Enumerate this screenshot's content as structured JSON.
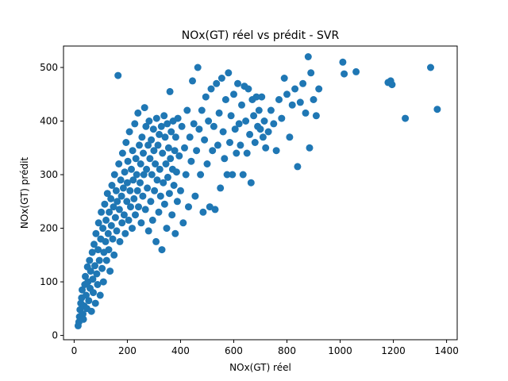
{
  "chart_data": {
    "type": "scatter",
    "title": "NOx(GT) réel vs prédit - SVR",
    "xlabel": "NOx(GT) réel",
    "ylabel": "NOx(GT) prédit",
    "xlim": [
      -40,
      1440
    ],
    "ylim": [
      -8,
      540
    ],
    "xticks": [
      0,
      200,
      400,
      600,
      800,
      1000,
      1200,
      1400
    ],
    "yticks": [
      0,
      100,
      200,
      300,
      400,
      500
    ],
    "grid": false,
    "legend": "none",
    "marker_color": "#1f77b4",
    "series": [
      {
        "points": [
          [
            15,
            18
          ],
          [
            18,
            25
          ],
          [
            20,
            35
          ],
          [
            22,
            48
          ],
          [
            25,
            60
          ],
          [
            28,
            70
          ],
          [
            30,
            85
          ],
          [
            33,
            40
          ],
          [
            35,
            30
          ],
          [
            38,
            55
          ],
          [
            40,
            95
          ],
          [
            42,
            110
          ],
          [
            45,
            75
          ],
          [
            48,
            50
          ],
          [
            50,
            128
          ],
          [
            52,
            100
          ],
          [
            55,
            65
          ],
          [
            58,
            140
          ],
          [
            60,
            88
          ],
          [
            62,
            120
          ],
          [
            65,
            45
          ],
          [
            68,
            155
          ],
          [
            70,
            105
          ],
          [
            72,
            80
          ],
          [
            75,
            170
          ],
          [
            78,
            130
          ],
          [
            80,
            60
          ],
          [
            82,
            190
          ],
          [
            85,
            115
          ],
          [
            88,
            95
          ],
          [
            90,
            160
          ],
          [
            92,
            210
          ],
          [
            95,
            140
          ],
          [
            98,
            75
          ],
          [
            100,
            180
          ],
          [
            102,
            230
          ],
          [
            105,
            125
          ],
          [
            108,
            200
          ],
          [
            110,
            100
          ],
          [
            112,
            155
          ],
          [
            115,
            245
          ],
          [
            118,
            175
          ],
          [
            120,
            215
          ],
          [
            122,
            140
          ],
          [
            125,
            265
          ],
          [
            128,
            190
          ],
          [
            130,
            160
          ],
          [
            132,
            230
          ],
          [
            135,
            120
          ],
          [
            138,
            255
          ],
          [
            140,
            205
          ],
          [
            142,
            280
          ],
          [
            145,
            180
          ],
          [
            148,
            240
          ],
          [
            150,
            150
          ],
          [
            152,
            300
          ],
          [
            155,
            220
          ],
          [
            158,
            270
          ],
          [
            160,
            195
          ],
          [
            162,
            250
          ],
          [
            165,
            485
          ],
          [
            168,
            320
          ],
          [
            170,
            235
          ],
          [
            172,
            175
          ],
          [
            175,
            290
          ],
          [
            178,
            260
          ],
          [
            180,
            210
          ],
          [
            182,
            340
          ],
          [
            185,
            275
          ],
          [
            188,
            225
          ],
          [
            190,
            305
          ],
          [
            192,
            190
          ],
          [
            195,
            360
          ],
          [
            198,
            250
          ],
          [
            200,
            285
          ],
          [
            202,
            325
          ],
          [
            205,
            215
          ],
          [
            208,
            380
          ],
          [
            210,
            270
          ],
          [
            212,
            240
          ],
          [
            215,
            310
          ],
          [
            218,
            200
          ],
          [
            220,
            345
          ],
          [
            222,
            290
          ],
          [
            225,
            255
          ],
          [
            228,
            395
          ],
          [
            230,
            225
          ],
          [
            232,
            330
          ],
          [
            235,
            300
          ],
          [
            238,
            270
          ],
          [
            240,
            415
          ],
          [
            242,
            240
          ],
          [
            245,
            355
          ],
          [
            248,
            285
          ],
          [
            250,
            320
          ],
          [
            252,
            210
          ],
          [
            255,
            370
          ],
          [
            258,
            260
          ],
          [
            260,
            340
          ],
          [
            262,
            300
          ],
          [
            265,
            425
          ],
          [
            268,
            235
          ],
          [
            270,
            390
          ],
          [
            272,
            310
          ],
          [
            275,
            275
          ],
          [
            278,
            355
          ],
          [
            280,
            195
          ],
          [
            282,
            400
          ],
          [
            285,
            330
          ],
          [
            288,
            250
          ],
          [
            290,
            365
          ],
          [
            292,
            300
          ],
          [
            295,
            215
          ],
          [
            298,
            385
          ],
          [
            300,
            345
          ],
          [
            302,
            270
          ],
          [
            305,
            320
          ],
          [
            308,
            175
          ],
          [
            310,
            405
          ],
          [
            312,
            290
          ],
          [
            315,
            355
          ],
          [
            318,
            230
          ],
          [
            320,
            375
          ],
          [
            322,
            310
          ],
          [
            325,
            260
          ],
          [
            328,
            390
          ],
          [
            330,
            160
          ],
          [
            332,
            340
          ],
          [
            335,
            285
          ],
          [
            338,
            410
          ],
          [
            340,
            245
          ],
          [
            342,
            370
          ],
          [
            345,
            320
          ],
          [
            348,
            200
          ],
          [
            350,
            395
          ],
          [
            352,
            295
          ],
          [
            355,
            350
          ],
          [
            358,
            265
          ],
          [
            360,
            455
          ],
          [
            362,
            330
          ],
          [
            365,
            380
          ],
          [
            368,
            225
          ],
          [
            370,
            310
          ],
          [
            372,
            400
          ],
          [
            375,
            280
          ],
          [
            378,
            345
          ],
          [
            380,
            190
          ],
          [
            382,
            370
          ],
          [
            385,
            305
          ],
          [
            388,
            250
          ],
          [
            390,
            405
          ],
          [
            395,
            335
          ],
          [
            400,
            270
          ],
          [
            405,
            390
          ],
          [
            410,
            210
          ],
          [
            415,
            350
          ],
          [
            420,
            300
          ],
          [
            425,
            420
          ],
          [
            430,
            240
          ],
          [
            435,
            370
          ],
          [
            440,
            325
          ],
          [
            445,
            475
          ],
          [
            450,
            395
          ],
          [
            455,
            260
          ],
          [
            460,
            345
          ],
          [
            465,
            500
          ],
          [
            470,
            385
          ],
          [
            475,
            300
          ],
          [
            480,
            420
          ],
          [
            485,
            230
          ],
          [
            490,
            365
          ],
          [
            495,
            445
          ],
          [
            500,
            320
          ],
          [
            505,
            400
          ],
          [
            510,
            240
          ],
          [
            515,
            460
          ],
          [
            520,
            345
          ],
          [
            525,
            390
          ],
          [
            530,
            235
          ],
          [
            535,
            470
          ],
          [
            540,
            355
          ],
          [
            545,
            415
          ],
          [
            550,
            275
          ],
          [
            555,
            480
          ],
          [
            560,
            380
          ],
          [
            565,
            330
          ],
          [
            570,
            440
          ],
          [
            575,
            300
          ],
          [
            580,
            490
          ],
          [
            585,
            360
          ],
          [
            590,
            410
          ],
          [
            595,
            300
          ],
          [
            600,
            450
          ],
          [
            605,
            385
          ],
          [
            610,
            340
          ],
          [
            615,
            470
          ],
          [
            620,
            395
          ],
          [
            625,
            355
          ],
          [
            630,
            430
          ],
          [
            635,
            300
          ],
          [
            640,
            465
          ],
          [
            645,
            400
          ],
          [
            650,
            340
          ],
          [
            655,
            460
          ],
          [
            660,
            375
          ],
          [
            665,
            285
          ],
          [
            670,
            440
          ],
          [
            675,
            410
          ],
          [
            680,
            360
          ],
          [
            685,
            445
          ],
          [
            690,
            390
          ],
          [
            695,
            420
          ],
          [
            700,
            385
          ],
          [
            705,
            445
          ],
          [
            710,
            370
          ],
          [
            715,
            400
          ],
          [
            720,
            350
          ],
          [
            730,
            380
          ],
          [
            740,
            420
          ],
          [
            750,
            395
          ],
          [
            760,
            345
          ],
          [
            770,
            440
          ],
          [
            780,
            405
          ],
          [
            790,
            480
          ],
          [
            800,
            450
          ],
          [
            810,
            370
          ],
          [
            820,
            430
          ],
          [
            830,
            460
          ],
          [
            840,
            315
          ],
          [
            850,
            435
          ],
          [
            860,
            470
          ],
          [
            870,
            415
          ],
          [
            880,
            520
          ],
          [
            885,
            350
          ],
          [
            890,
            490
          ],
          [
            900,
            440
          ],
          [
            910,
            410
          ],
          [
            920,
            460
          ],
          [
            1010,
            510
          ],
          [
            1015,
            488
          ],
          [
            1060,
            492
          ],
          [
            1180,
            472
          ],
          [
            1190,
            475
          ],
          [
            1195,
            468
          ],
          [
            1245,
            405
          ],
          [
            1340,
            500
          ],
          [
            1365,
            422
          ]
        ]
      }
    ]
  }
}
